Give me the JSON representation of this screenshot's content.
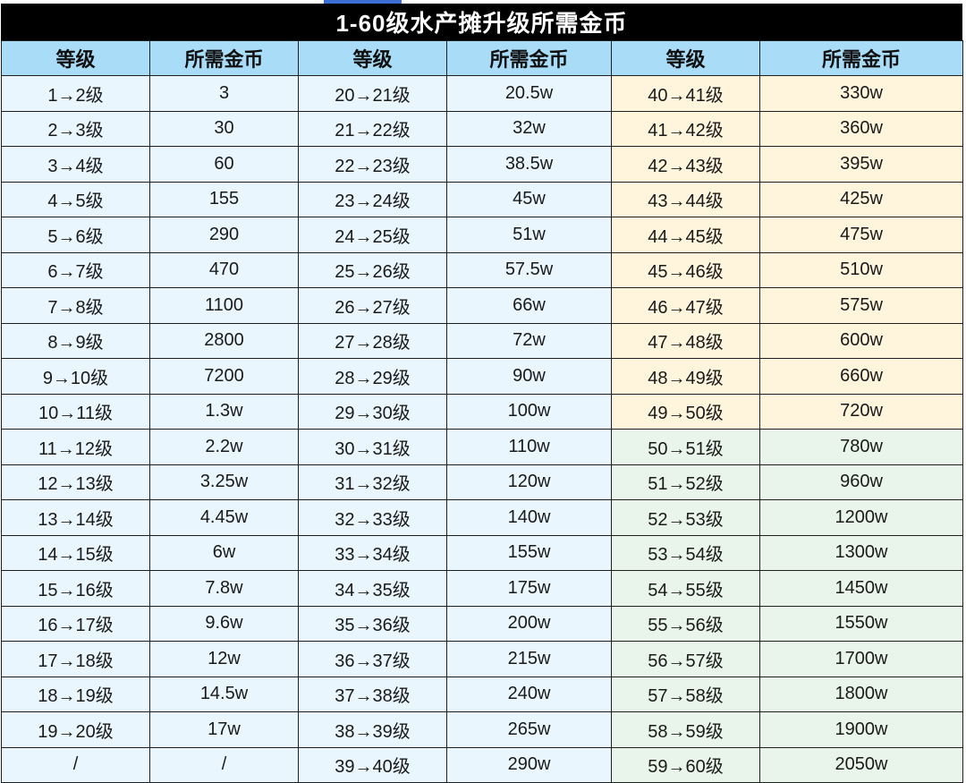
{
  "title": "1-60级水产摊升级所需金币",
  "headers": [
    "等级",
    "所需金币",
    "等级",
    "所需金币",
    "等级",
    "所需金币"
  ],
  "colors": {
    "title_bg": "#000000",
    "header_bg": "#a9dcf7",
    "blue_cell": "#e9f6fd",
    "yellow_cell": "#fff4dc",
    "green_cell": "#e9f5ea"
  },
  "rows": [
    [
      {
        "v": "1→2级",
        "c": "blue"
      },
      {
        "v": "3",
        "c": "blue"
      },
      {
        "v": "20→21级",
        "c": "blue"
      },
      {
        "v": "20.5w",
        "c": "blue"
      },
      {
        "v": "40→41级",
        "c": "yellow"
      },
      {
        "v": "330w",
        "c": "yellow"
      }
    ],
    [
      {
        "v": "2→3级",
        "c": "blue"
      },
      {
        "v": "30",
        "c": "blue"
      },
      {
        "v": "21→22级",
        "c": "blue"
      },
      {
        "v": "32w",
        "c": "blue"
      },
      {
        "v": "41→42级",
        "c": "yellow"
      },
      {
        "v": "360w",
        "c": "yellow"
      }
    ],
    [
      {
        "v": "3→4级",
        "c": "blue"
      },
      {
        "v": "60",
        "c": "blue"
      },
      {
        "v": "22→23级",
        "c": "blue"
      },
      {
        "v": "38.5w",
        "c": "blue"
      },
      {
        "v": "42→43级",
        "c": "yellow"
      },
      {
        "v": "395w",
        "c": "yellow"
      }
    ],
    [
      {
        "v": "4→5级",
        "c": "blue"
      },
      {
        "v": "155",
        "c": "blue"
      },
      {
        "v": "23→24级",
        "c": "blue"
      },
      {
        "v": "45w",
        "c": "blue"
      },
      {
        "v": "43→44级",
        "c": "yellow"
      },
      {
        "v": "425w",
        "c": "yellow"
      }
    ],
    [
      {
        "v": "5→6级",
        "c": "blue"
      },
      {
        "v": "290",
        "c": "blue"
      },
      {
        "v": "24→25级",
        "c": "blue"
      },
      {
        "v": "51w",
        "c": "blue"
      },
      {
        "v": "44→45级",
        "c": "yellow"
      },
      {
        "v": "475w",
        "c": "yellow"
      }
    ],
    [
      {
        "v": "6→7级",
        "c": "blue"
      },
      {
        "v": "470",
        "c": "blue"
      },
      {
        "v": "25→26级",
        "c": "blue"
      },
      {
        "v": "57.5w",
        "c": "blue"
      },
      {
        "v": "45→46级",
        "c": "yellow"
      },
      {
        "v": "510w",
        "c": "yellow"
      }
    ],
    [
      {
        "v": "7→8级",
        "c": "blue"
      },
      {
        "v": "1100",
        "c": "blue"
      },
      {
        "v": "26→27级",
        "c": "blue"
      },
      {
        "v": "66w",
        "c": "blue"
      },
      {
        "v": "46→47级",
        "c": "yellow"
      },
      {
        "v": "575w",
        "c": "yellow"
      }
    ],
    [
      {
        "v": "8→9级",
        "c": "blue"
      },
      {
        "v": "2800",
        "c": "blue"
      },
      {
        "v": "27→28级",
        "c": "blue"
      },
      {
        "v": "72w",
        "c": "blue"
      },
      {
        "v": "47→48级",
        "c": "yellow"
      },
      {
        "v": "600w",
        "c": "yellow"
      }
    ],
    [
      {
        "v": "9→10级",
        "c": "blue"
      },
      {
        "v": "7200",
        "c": "blue"
      },
      {
        "v": "28→29级",
        "c": "blue"
      },
      {
        "v": "90w",
        "c": "blue"
      },
      {
        "v": "48→49级",
        "c": "yellow"
      },
      {
        "v": "660w",
        "c": "yellow"
      }
    ],
    [
      {
        "v": "10→11级",
        "c": "blue"
      },
      {
        "v": "1.3w",
        "c": "blue"
      },
      {
        "v": "29→30级",
        "c": "blue"
      },
      {
        "v": "100w",
        "c": "blue"
      },
      {
        "v": "49→50级",
        "c": "yellow"
      },
      {
        "v": "720w",
        "c": "yellow"
      }
    ],
    [
      {
        "v": "11→12级",
        "c": "blue"
      },
      {
        "v": "2.2w",
        "c": "blue"
      },
      {
        "v": "30→31级",
        "c": "blue"
      },
      {
        "v": "110w",
        "c": "blue"
      },
      {
        "v": "50→51级",
        "c": "green"
      },
      {
        "v": "780w",
        "c": "green"
      }
    ],
    [
      {
        "v": "12→13级",
        "c": "blue"
      },
      {
        "v": "3.25w",
        "c": "blue"
      },
      {
        "v": "31→32级",
        "c": "blue"
      },
      {
        "v": "120w",
        "c": "blue"
      },
      {
        "v": "51→52级",
        "c": "green"
      },
      {
        "v": "960w",
        "c": "green"
      }
    ],
    [
      {
        "v": "13→14级",
        "c": "blue"
      },
      {
        "v": "4.45w",
        "c": "blue"
      },
      {
        "v": "32→33级",
        "c": "blue"
      },
      {
        "v": "140w",
        "c": "blue"
      },
      {
        "v": "52→53级",
        "c": "green"
      },
      {
        "v": "1200w",
        "c": "green"
      }
    ],
    [
      {
        "v": "14→15级",
        "c": "blue"
      },
      {
        "v": "6w",
        "c": "blue"
      },
      {
        "v": "33→34级",
        "c": "blue"
      },
      {
        "v": "155w",
        "c": "blue"
      },
      {
        "v": "53→54级",
        "c": "green"
      },
      {
        "v": "1300w",
        "c": "green"
      }
    ],
    [
      {
        "v": "15→16级",
        "c": "blue"
      },
      {
        "v": "7.8w",
        "c": "blue"
      },
      {
        "v": "34→35级",
        "c": "blue"
      },
      {
        "v": "175w",
        "c": "blue"
      },
      {
        "v": "54→55级",
        "c": "green"
      },
      {
        "v": "1450w",
        "c": "green"
      }
    ],
    [
      {
        "v": "16→17级",
        "c": "blue"
      },
      {
        "v": "9.6w",
        "c": "blue"
      },
      {
        "v": "35→36级",
        "c": "blue"
      },
      {
        "v": "200w",
        "c": "blue"
      },
      {
        "v": "55→56级",
        "c": "green"
      },
      {
        "v": "1550w",
        "c": "green"
      }
    ],
    [
      {
        "v": "17→18级",
        "c": "blue"
      },
      {
        "v": "12w",
        "c": "blue"
      },
      {
        "v": "36→37级",
        "c": "blue"
      },
      {
        "v": "215w",
        "c": "blue"
      },
      {
        "v": "56→57级",
        "c": "green"
      },
      {
        "v": "1700w",
        "c": "green"
      }
    ],
    [
      {
        "v": "18→19级",
        "c": "blue"
      },
      {
        "v": "14.5w",
        "c": "blue"
      },
      {
        "v": "37→38级",
        "c": "blue"
      },
      {
        "v": "240w",
        "c": "blue"
      },
      {
        "v": "57→58级",
        "c": "green"
      },
      {
        "v": "1800w",
        "c": "green"
      }
    ],
    [
      {
        "v": "19→20级",
        "c": "blue"
      },
      {
        "v": "17w",
        "c": "blue"
      },
      {
        "v": "38→39级",
        "c": "blue"
      },
      {
        "v": "265w",
        "c": "blue"
      },
      {
        "v": "58→59级",
        "c": "green"
      },
      {
        "v": "1900w",
        "c": "green"
      }
    ],
    [
      {
        "v": "/",
        "c": "blue"
      },
      {
        "v": "/",
        "c": "blue"
      },
      {
        "v": "39→40级",
        "c": "blue"
      },
      {
        "v": "290w",
        "c": "blue"
      },
      {
        "v": "59→60级",
        "c": "green"
      },
      {
        "v": "2050w",
        "c": "green"
      }
    ]
  ]
}
